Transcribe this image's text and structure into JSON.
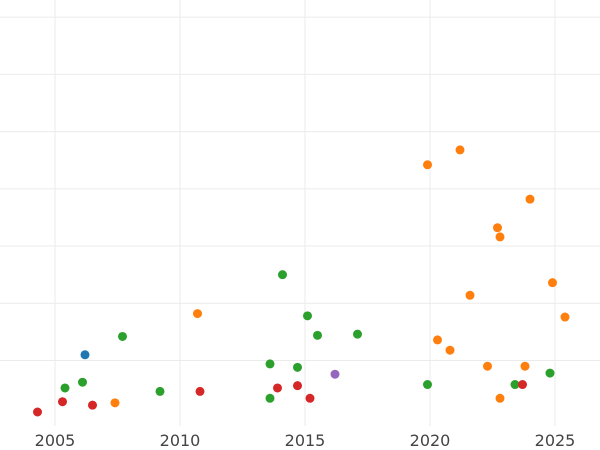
{
  "chart_data": {
    "type": "scatter",
    "title": "",
    "xlabel": "",
    "ylabel": "",
    "xlim": [
      2002.8,
      2026.8
    ],
    "ylim": [
      0,
      36
    ],
    "grid": true,
    "legend": "none",
    "x_ticks": [
      2005,
      2010,
      2015,
      2020,
      2025
    ],
    "x_tick_labels": [
      "2005",
      "2010",
      "2015",
      "2020",
      "2025"
    ],
    "y_grid_values": [
      4.5,
      9.5,
      14.5,
      19.5,
      24.5,
      29.5,
      34.5
    ],
    "series": [
      {
        "color": "#1f77b4",
        "points": [
          {
            "x": 2006.2,
            "y": 5.0
          }
        ]
      },
      {
        "color": "#ff7f0e",
        "points": [
          {
            "x": 2007.4,
            "y": 0.8
          },
          {
            "x": 2010.7,
            "y": 8.6
          },
          {
            "x": 2019.9,
            "y": 21.6
          },
          {
            "x": 2020.3,
            "y": 6.3
          },
          {
            "x": 2020.8,
            "y": 5.4
          },
          {
            "x": 2021.2,
            "y": 22.9
          },
          {
            "x": 2021.6,
            "y": 10.2
          },
          {
            "x": 2022.3,
            "y": 4.0
          },
          {
            "x": 2022.7,
            "y": 16.1
          },
          {
            "x": 2022.8,
            "y": 15.3
          },
          {
            "x": 2022.8,
            "y": 1.2
          },
          {
            "x": 2023.8,
            "y": 4.0
          },
          {
            "x": 2024.0,
            "y": 18.6
          },
          {
            "x": 2024.9,
            "y": 11.3
          },
          {
            "x": 2025.4,
            "y": 8.3
          }
        ]
      },
      {
        "color": "#2ca02c",
        "points": [
          {
            "x": 2005.4,
            "y": 2.1
          },
          {
            "x": 2006.1,
            "y": 2.6
          },
          {
            "x": 2007.7,
            "y": 6.6
          },
          {
            "x": 2009.2,
            "y": 1.8
          },
          {
            "x": 2013.6,
            "y": 1.2
          },
          {
            "x": 2013.6,
            "y": 4.2
          },
          {
            "x": 2014.1,
            "y": 12.0
          },
          {
            "x": 2014.7,
            "y": 3.9
          },
          {
            "x": 2015.1,
            "y": 8.4
          },
          {
            "x": 2015.5,
            "y": 6.7
          },
          {
            "x": 2017.1,
            "y": 6.8
          },
          {
            "x": 2019.9,
            "y": 2.4
          },
          {
            "x": 2023.4,
            "y": 2.4
          },
          {
            "x": 2024.8,
            "y": 3.4
          }
        ]
      },
      {
        "color": "#d62728",
        "points": [
          {
            "x": 2004.3,
            "y": 0.0
          },
          {
            "x": 2005.3,
            "y": 0.9
          },
          {
            "x": 2006.5,
            "y": 0.6
          },
          {
            "x": 2010.8,
            "y": 1.8
          },
          {
            "x": 2013.9,
            "y": 2.1
          },
          {
            "x": 2014.7,
            "y": 2.3
          },
          {
            "x": 2015.2,
            "y": 1.2
          },
          {
            "x": 2023.7,
            "y": 2.4
          }
        ]
      },
      {
        "color": "#9467bd",
        "points": [
          {
            "x": 2016.2,
            "y": 3.3
          }
        ]
      }
    ]
  }
}
